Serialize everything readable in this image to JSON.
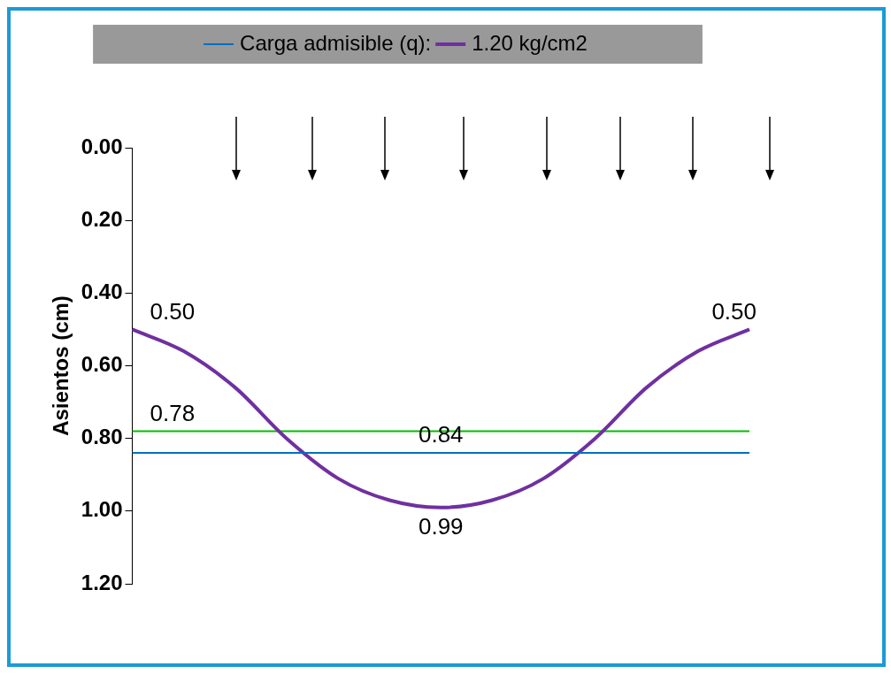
{
  "chart_data": {
    "type": "line",
    "ylabel": "Asientos (cm)",
    "categories": [
      null,
      null,
      null,
      null,
      null,
      null,
      null,
      null,
      null,
      null,
      null,
      null,
      null
    ],
    "series": [
      {
        "name": "Carga admisible (q):",
        "color": "#0070c0",
        "values": [
          0.84,
          0.84,
          0.84,
          0.84,
          0.84,
          0.84,
          0.84,
          0.84,
          0.84,
          0.84,
          0.84,
          0.84,
          0.84
        ],
        "value_labels": [
          null,
          null,
          null,
          null,
          null,
          null,
          "0.84",
          null,
          null,
          null,
          null,
          null,
          null
        ]
      },
      {
        "name": "1.20 kg/cm2",
        "color": "#7030a0",
        "values": [
          0.5,
          0.56,
          0.66,
          0.8,
          0.91,
          0.97,
          0.99,
          0.97,
          0.91,
          0.8,
          0.66,
          0.56,
          0.5
        ],
        "value_labels": [
          "0.50",
          null,
          null,
          null,
          null,
          null,
          "0.99",
          null,
          null,
          null,
          null,
          null,
          "0.50"
        ]
      },
      {
        "color": "#00c000",
        "values": [
          0.78,
          0.78,
          0.78,
          0.78,
          0.78,
          0.78,
          0.78,
          0.78,
          0.78,
          0.78,
          0.78,
          0.78,
          0.78
        ],
        "value_labels": [
          "0.78",
          null,
          null,
          null,
          null,
          null,
          null,
          null,
          null,
          null,
          null,
          null,
          null
        ]
      }
    ],
    "ylim": [
      1.2,
      0
    ],
    "yticks": [
      {
        "value": 0,
        "label": "0.00"
      },
      {
        "value": 0.2,
        "label": "0.20"
      },
      {
        "value": 0.4,
        "label": "0.40"
      },
      {
        "value": 0.6,
        "label": "0.60"
      },
      {
        "value": 0.8,
        "label": "0.80"
      },
      {
        "value": 1,
        "label": "1.00"
      },
      {
        "value": 1.2,
        "label": "1.20"
      }
    ],
    "legend": "top",
    "grid": false,
    "marker": "none",
    "line_style": "solid",
    "tick_labels": "y"
  }
}
